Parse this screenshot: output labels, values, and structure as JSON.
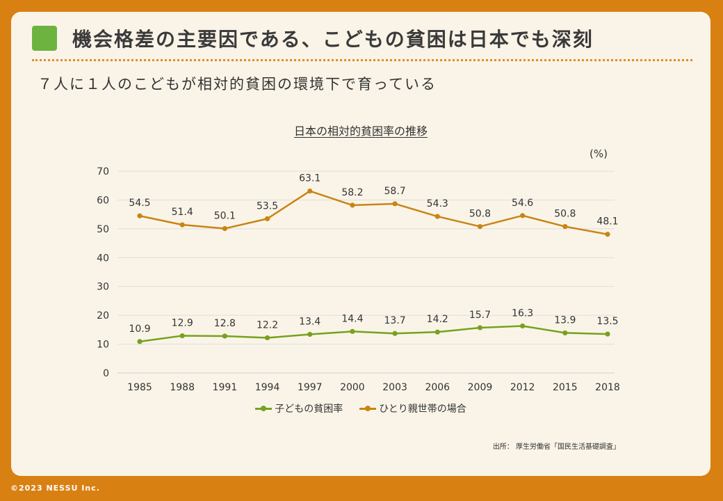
{
  "heading": {
    "title": "機会格差の主要因である、こどもの貧困は日本でも深刻",
    "subtitle": "７人に１人のこどもが相対的貧困の環境下で育っている"
  },
  "colors": {
    "background": "#D98013",
    "card": "#FAF4E8",
    "accent_square": "#6DB33F",
    "children_series": "#76A21E",
    "single_parent_series": "#C88514"
  },
  "chart_data": {
    "type": "line",
    "title": "日本の相対的貧困率の推移",
    "unit_label": "(%)",
    "x": [
      "1985",
      "1988",
      "1991",
      "1994",
      "1997",
      "2000",
      "2003",
      "2006",
      "2009",
      "2012",
      "2015",
      "2018"
    ],
    "ylim": [
      0,
      70
    ],
    "yticks": [
      0,
      10,
      20,
      30,
      40,
      50,
      60,
      70
    ],
    "grid": true,
    "legend_position": "bottom",
    "series": [
      {
        "name": "子どもの貧困率",
        "color": "#76A21E",
        "values": [
          10.9,
          12.9,
          12.8,
          12.2,
          13.4,
          14.4,
          13.7,
          14.2,
          15.7,
          16.3,
          13.9,
          13.5
        ]
      },
      {
        "name": "ひとり親世帯の場合",
        "color": "#C88514",
        "values": [
          54.5,
          51.4,
          50.1,
          53.5,
          63.1,
          58.2,
          58.7,
          54.3,
          50.8,
          54.6,
          50.8,
          48.1
        ]
      }
    ]
  },
  "source": "出所： 厚生労働省「国民生活基礎調査」",
  "copyright": "©2023 NESSU Inc."
}
